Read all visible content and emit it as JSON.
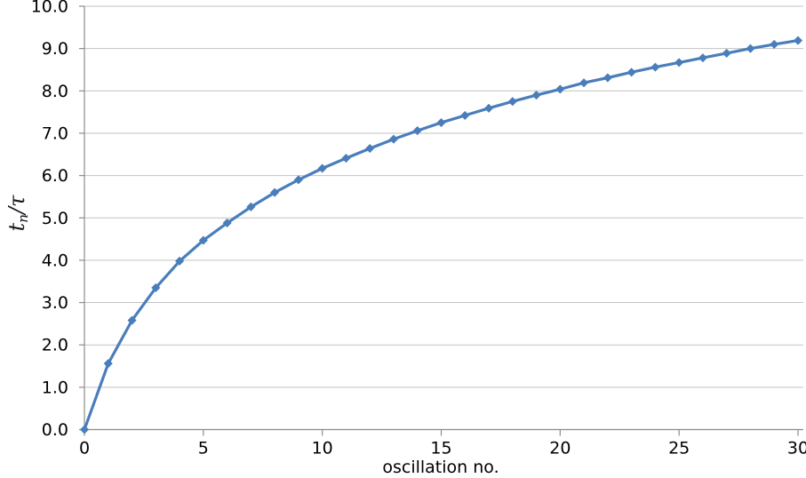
{
  "chart_data": {
    "type": "line",
    "series": [
      {
        "name": "tn_over_tau",
        "x": [
          0,
          1,
          2,
          3,
          4,
          5,
          6,
          7,
          8,
          9,
          10,
          11,
          12,
          13,
          14,
          15,
          16,
          17,
          18,
          19,
          20,
          21,
          22,
          23,
          24,
          25,
          26,
          27,
          28,
          29,
          30
        ],
        "values": [
          0.0,
          1.56,
          2.58,
          3.35,
          3.98,
          4.47,
          4.88,
          5.26,
          5.6,
          5.9,
          6.17,
          6.41,
          6.64,
          6.86,
          7.06,
          7.25,
          7.42,
          7.59,
          7.75,
          7.9,
          8.04,
          8.19,
          8.31,
          8.44,
          8.56,
          8.67,
          8.78,
          8.89,
          9.0,
          9.1,
          9.19
        ]
      }
    ],
    "title": "",
    "xlabel": "oscillation no.",
    "ylabel": {
      "base": "t",
      "subscript": "n",
      "rest": "/τ"
    },
    "xlim": [
      0,
      30
    ],
    "ylim": [
      0.0,
      10.0
    ],
    "x_ticks": [
      "0",
      "5",
      "10",
      "15",
      "20",
      "25",
      "30"
    ],
    "x_tick_values": [
      0,
      5,
      10,
      15,
      20,
      25,
      30
    ],
    "y_ticks": [
      "0.0",
      "1.0",
      "2.0",
      "3.0",
      "4.0",
      "5.0",
      "6.0",
      "7.0",
      "8.0",
      "9.0",
      "10.0"
    ],
    "y_tick_values": [
      0,
      1,
      2,
      3,
      4,
      5,
      6,
      7,
      8,
      9,
      10
    ],
    "grid": "horizontal",
    "legend": "none",
    "marker": "diamond",
    "colors": {
      "line": "#4a7ebb",
      "marker": "#4a7ebb",
      "grid": "#c2c2c2",
      "axis": "#8c8c8c",
      "tick_text": "#000000",
      "background": "#ffffff"
    }
  }
}
